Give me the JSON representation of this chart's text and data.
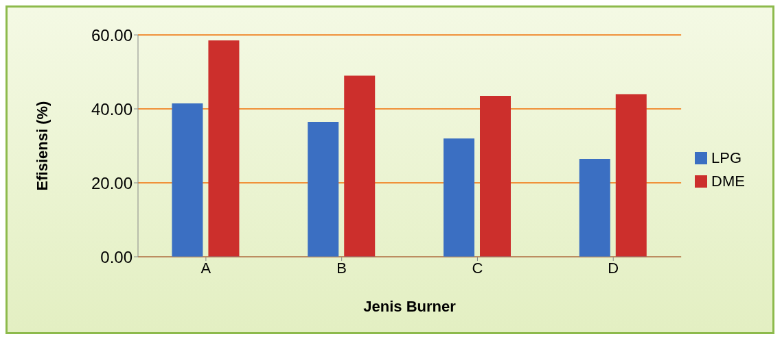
{
  "chart_data": {
    "type": "bar",
    "xlabel": "Jenis Burner",
    "ylabel": "Efisiensi (%)",
    "categories": [
      "A",
      "B",
      "C",
      "D"
    ],
    "series": [
      {
        "name": "LPG",
        "color": "#3b6fc2",
        "values": [
          41.5,
          36.5,
          32,
          26.5
        ]
      },
      {
        "name": "DME",
        "color": "#cc2f2c",
        "values": [
          58.5,
          49,
          43.5,
          44
        ]
      }
    ],
    "ylim": [
      0,
      60
    ],
    "yticks": [
      {
        "value": 0,
        "label": "0.00"
      },
      {
        "value": 20,
        "label": "20.00"
      },
      {
        "value": 40,
        "label": "40.00"
      },
      {
        "value": 60,
        "label": "60.00"
      }
    ],
    "grid": "y",
    "legend": "right"
  }
}
